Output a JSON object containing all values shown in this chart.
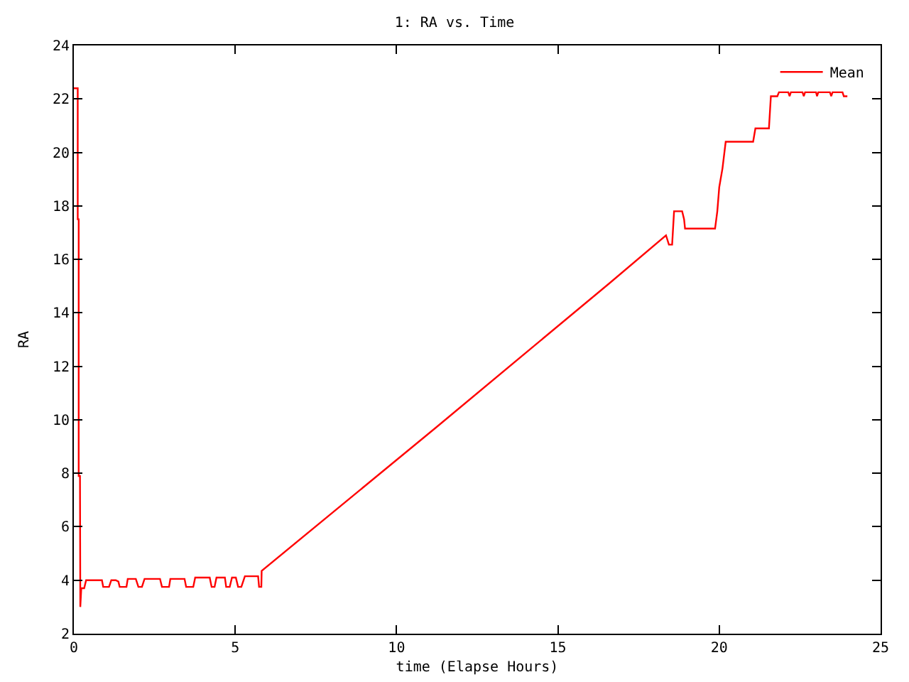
{
  "chart_data": {
    "type": "line",
    "title": "1: RA vs. Time",
    "xlabel": "time (Elapse Hours)",
    "ylabel": "RA",
    "xlim": [
      0,
      25
    ],
    "xticks": [
      0,
      5,
      10,
      15,
      20,
      25
    ],
    "ylim": [
      2,
      24
    ],
    "yticks": [
      2,
      4,
      6,
      8,
      10,
      12,
      14,
      16,
      18,
      20,
      22,
      24
    ],
    "grid": false,
    "legend": "top right",
    "series": [
      {
        "name": "Mean",
        "color": "#ff0000",
        "x": [
          0,
          0.12,
          0.12,
          0.15,
          0.15,
          0.19,
          0.2,
          0.23,
          0.32,
          0.38,
          0.87,
          0.91,
          1.09,
          1.16,
          1.3,
          1.38,
          1.42,
          1.63,
          1.67,
          1.92,
          2.0,
          2.11,
          2.19,
          2.67,
          2.73,
          2.95,
          2.99,
          3.43,
          3.48,
          3.7,
          3.76,
          4.21,
          4.27,
          4.36,
          4.42,
          4.68,
          4.72,
          4.83,
          4.9,
          5.02,
          5.09,
          5.19,
          5.3,
          5.71,
          5.74,
          5.81,
          5.82,
          11.21,
          16.59,
          18.35,
          18.44,
          18.54,
          18.6,
          18.85,
          18.91,
          18.94,
          19.87,
          19.94,
          20.0,
          20.1,
          20.2,
          21.05,
          21.12,
          21.54,
          21.6,
          21.8,
          21.85,
          22.14,
          22.18,
          22.22,
          22.58,
          22.62,
          22.66,
          23.0,
          23.03,
          23.07,
          23.43,
          23.47,
          23.51,
          23.82,
          23.86,
          23.97
        ],
        "values": [
          22.4,
          22.4,
          17.5,
          17.5,
          7.9,
          7.9,
          3.0,
          3.7,
          3.7,
          4.0,
          4.0,
          3.75,
          3.75,
          4.0,
          4.0,
          3.95,
          3.75,
          3.75,
          4.05,
          4.05,
          3.75,
          3.75,
          4.05,
          4.05,
          3.75,
          3.75,
          4.05,
          4.05,
          3.75,
          3.75,
          4.1,
          4.1,
          3.75,
          3.75,
          4.1,
          4.1,
          3.75,
          3.75,
          4.1,
          4.1,
          3.75,
          3.75,
          4.15,
          4.15,
          3.75,
          3.75,
          4.35,
          9.7,
          15.1,
          16.9,
          16.55,
          16.55,
          17.8,
          17.8,
          17.5,
          17.15,
          17.15,
          17.8,
          18.7,
          19.4,
          20.4,
          20.4,
          20.9,
          20.9,
          22.1,
          22.1,
          22.25,
          22.25,
          22.1,
          22.25,
          22.25,
          22.1,
          22.25,
          22.25,
          22.1,
          22.25,
          22.25,
          22.1,
          22.25,
          22.25,
          22.1,
          22.1
        ]
      }
    ]
  }
}
